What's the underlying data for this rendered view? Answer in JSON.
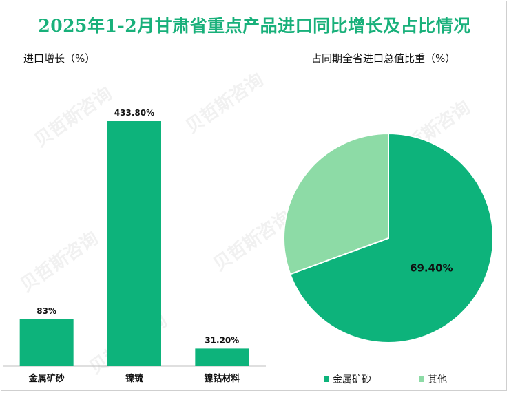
{
  "title": "2025年1-2月甘肃省重点产品进口同比增长及占比情况",
  "bar_subtitle": "进口增长（%）",
  "pie_subtitle": "占同期全省进口总值比重（%）",
  "colors": {
    "bar": "#0db37b",
    "pie_main": "#0db37b",
    "pie_other": "#8ddba6",
    "title": "#18b07a"
  },
  "chart_data": [
    {
      "type": "bar",
      "title": "进口增长（%）",
      "categories": [
        "金属矿砂",
        "镍锍",
        "镍钴材料"
      ],
      "values": [
        83,
        433.8,
        31.2
      ],
      "value_labels": [
        "83%",
        "433.80%",
        "31.20%"
      ],
      "ylim": [
        0,
        433.8
      ],
      "grid": false
    },
    {
      "type": "pie",
      "title": "占同期全省进口总值比重（%）",
      "labels": [
        "金属矿砂",
        "其他"
      ],
      "values": [
        69.4,
        30.6
      ],
      "value_labels": [
        "69.40%",
        ""
      ],
      "legend": "bottom"
    }
  ]
}
